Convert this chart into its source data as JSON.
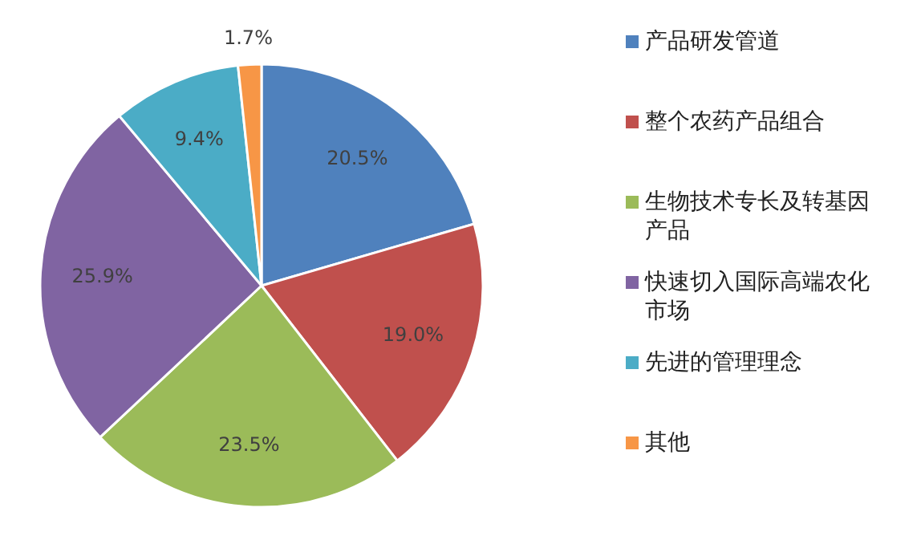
{
  "chart_data": {
    "type": "pie",
    "categories": [
      "产品研发管道",
      "整个农药产品组合",
      "生物技术专长及转基因产品",
      "快速切入国际高端农化市场",
      "先进的管理理念",
      "其他"
    ],
    "values": [
      20.5,
      19.0,
      23.5,
      25.9,
      9.4,
      1.7
    ],
    "colors": [
      "#4f81bd",
      "#c0504d",
      "#9bbb59",
      "#8064a2",
      "#4bacc6",
      "#f79646"
    ],
    "value_labels": [
      "20.5%",
      "19.0%",
      "23.5%",
      "25.9%",
      "9.4%",
      "1.7%"
    ],
    "legend": "right"
  }
}
